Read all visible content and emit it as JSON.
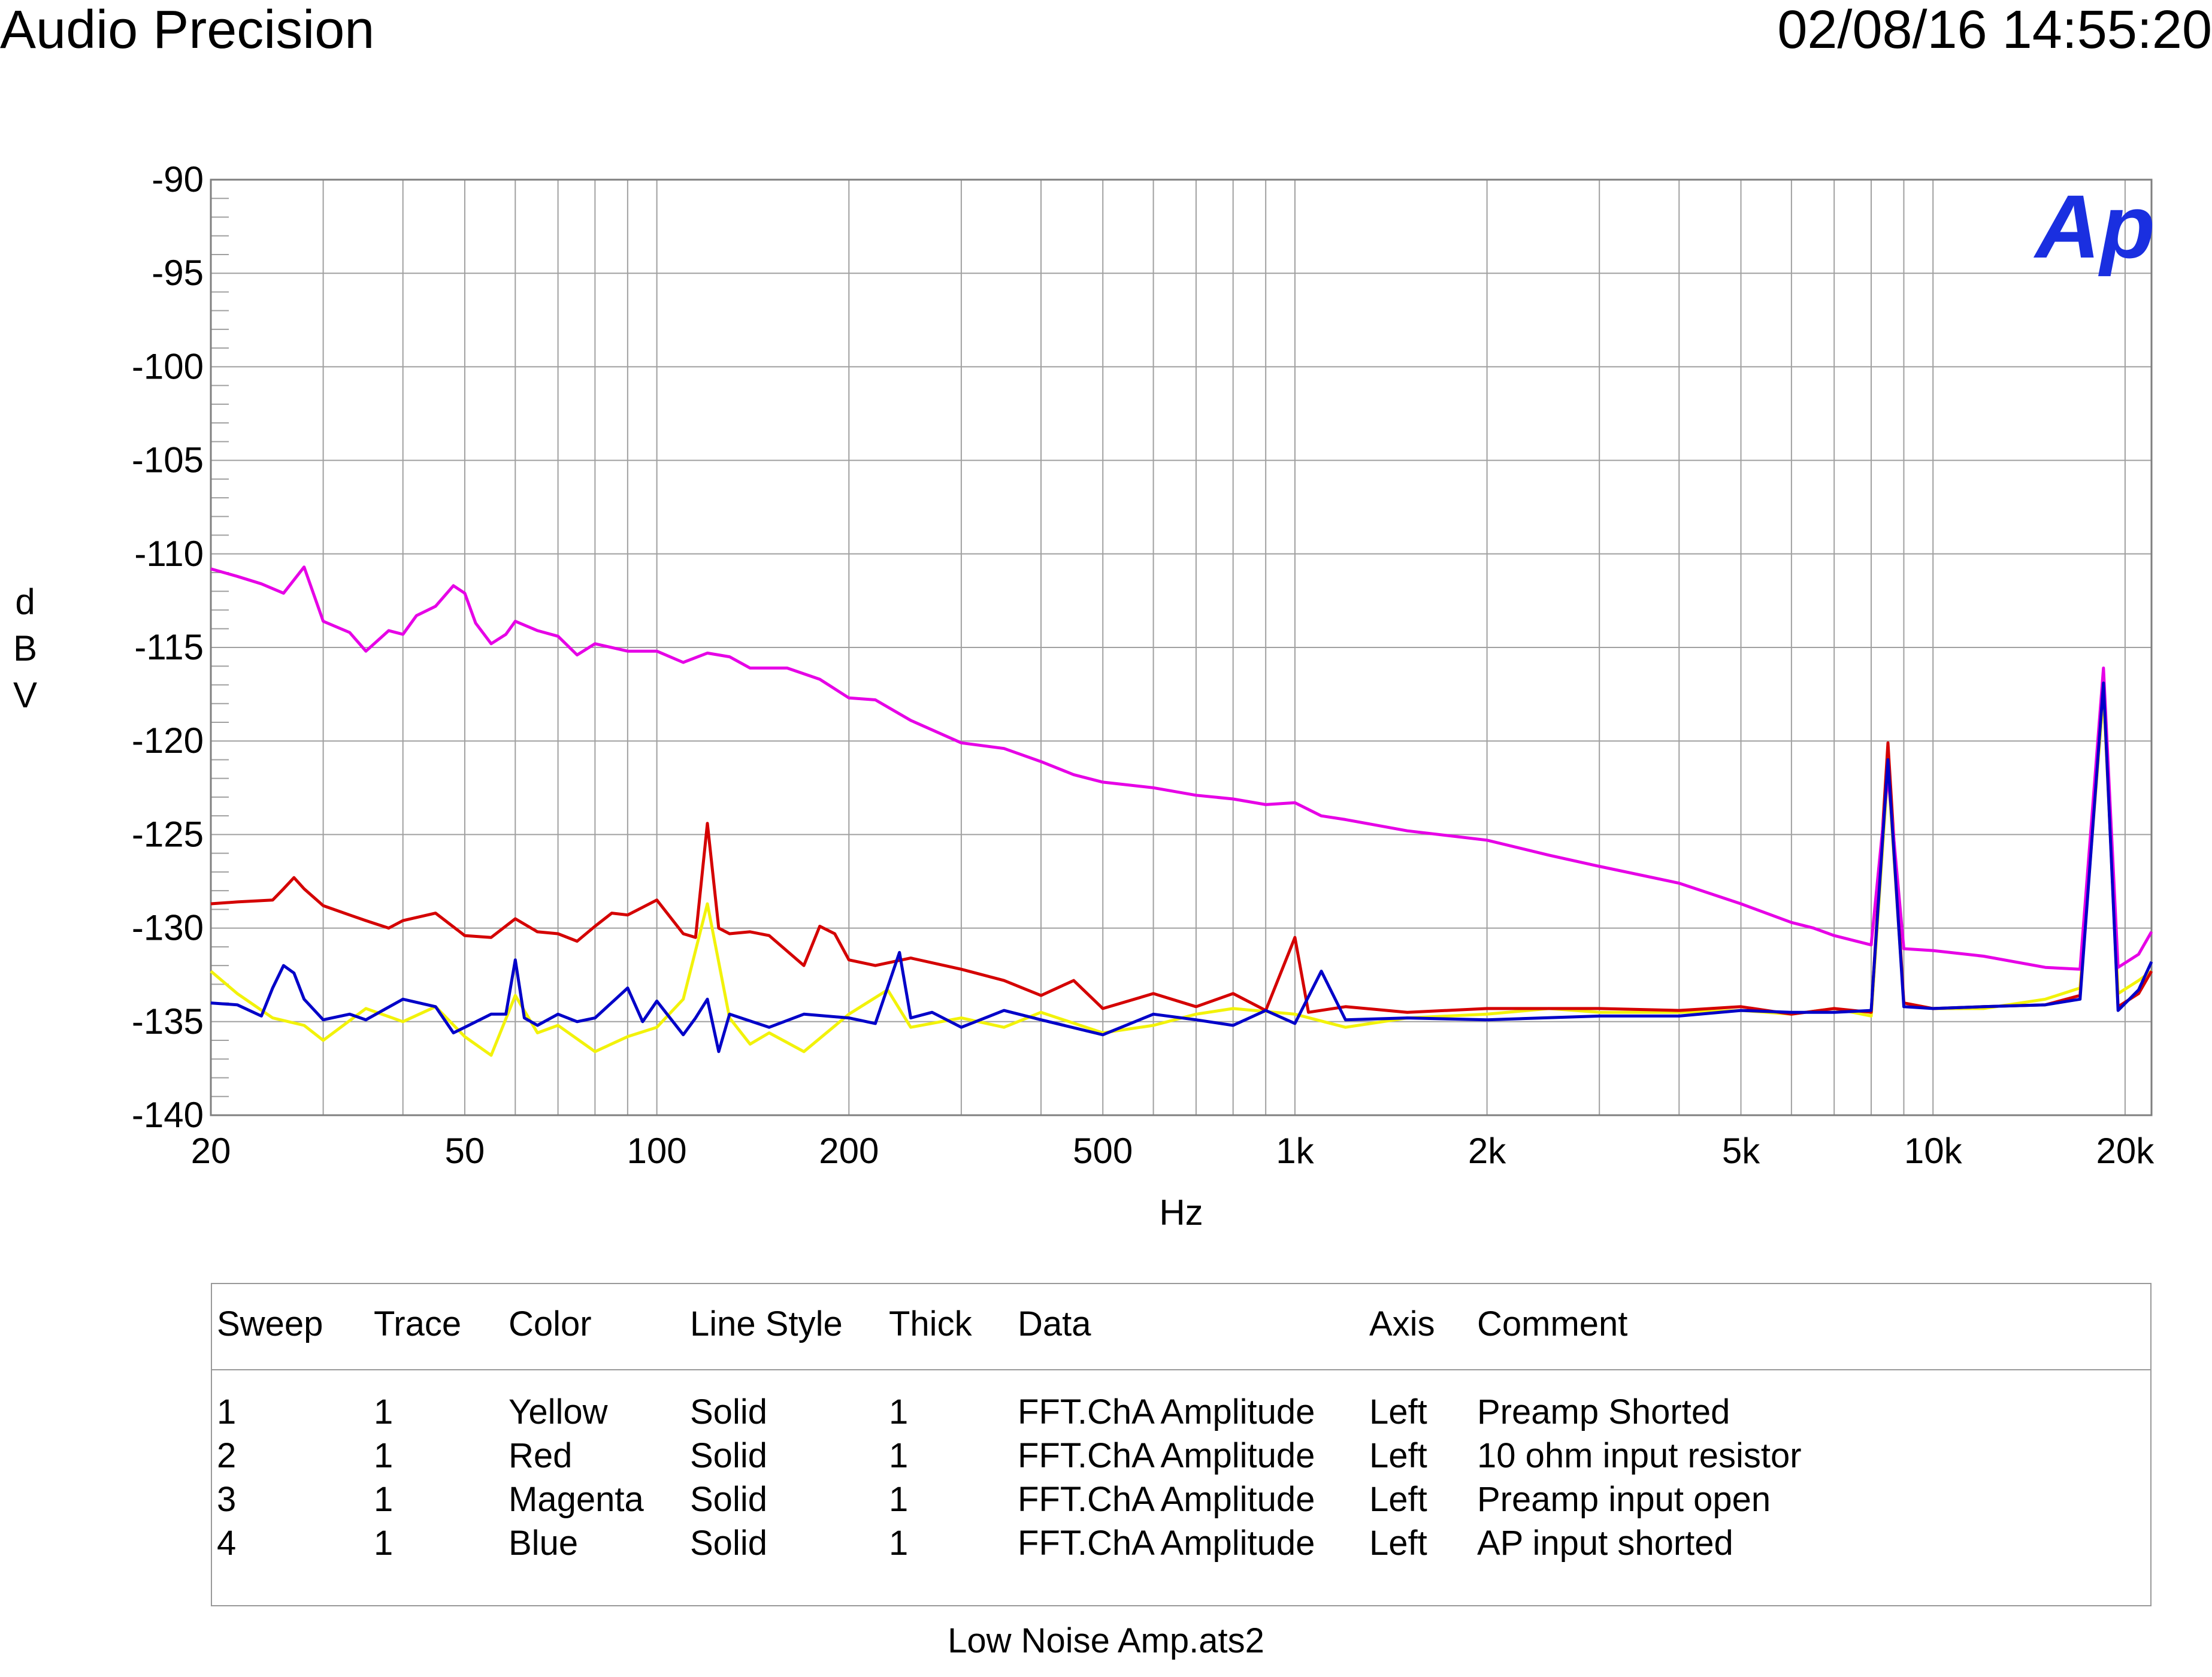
{
  "header": {
    "left": "Audio Precision",
    "right": "02/08/16 14:55:20"
  },
  "logo_text": "Ap",
  "colors": {
    "yellow": "#f2f20a",
    "red": "#d40000",
    "magenta": "#e600e6",
    "blue": "#0000c8",
    "logo": "#1a2fe0",
    "grid": "#a0a0a0"
  },
  "chart_data": {
    "type": "line",
    "title": "",
    "xlabel": "Hz",
    "ylabel": "dBV",
    "ylabel_chars": [
      "d",
      "B",
      "V"
    ],
    "xscale": "log",
    "xlim": [
      20,
      22000
    ],
    "ylim": [
      -140,
      -90
    ],
    "grid": true,
    "yticks": [
      -90,
      -95,
      -100,
      -105,
      -110,
      -115,
      -120,
      -125,
      -130,
      -135,
      -140
    ],
    "ytick_labels": [
      "-90",
      "-95",
      "-100",
      "-105",
      "-110",
      "-115",
      "-120",
      "-125",
      "-130",
      "-135",
      "-140"
    ],
    "xticks": [
      20,
      50,
      100,
      200,
      500,
      1000,
      2000,
      5000,
      10000,
      20000
    ],
    "xtick_labels": [
      "20",
      "50",
      "100",
      "200",
      "500",
      "1k",
      "2k",
      "5k",
      "10k",
      "20k"
    ],
    "series": [
      {
        "name": "Yellow",
        "color": "#f2f20a",
        "comment": "Preamp Shorted",
        "x": [
          20,
          22,
          25,
          28,
          30,
          35,
          40,
          45,
          50,
          55,
          60,
          65,
          70,
          80,
          90,
          100,
          110,
          120,
          130,
          140,
          150,
          170,
          200,
          230,
          250,
          300,
          350,
          400,
          500,
          600,
          700,
          800,
          1000,
          1200,
          1500,
          2000,
          2500,
          3000,
          4000,
          5000,
          6000,
          7000,
          8000,
          8500,
          9000,
          10000,
          12000,
          15000,
          17000,
          18500,
          19500,
          21000,
          22000
        ],
        "y": [
          -132.3,
          -133.5,
          -134.8,
          -135.2,
          -136,
          -134.3,
          -135,
          -134.2,
          -135.8,
          -136.8,
          -133.6,
          -135.6,
          -135.2,
          -136.6,
          -135.8,
          -135.3,
          -133.8,
          -128.7,
          -134.8,
          -136.2,
          -135.6,
          -136.6,
          -134.6,
          -133.3,
          -135.3,
          -134.8,
          -135.3,
          -134.5,
          -135.6,
          -135.2,
          -134.6,
          -134.3,
          -134.6,
          -135.3,
          -134.8,
          -134.6,
          -134.3,
          -134.5,
          -134.5,
          -134.4,
          -134.6,
          -134.3,
          -134.7,
          -121.5,
          -134,
          -134.3,
          -134.3,
          -133.8,
          -133.2,
          -117.5,
          -133.5,
          -132.8,
          -132.3
        ]
      },
      {
        "name": "Red",
        "color": "#d40000",
        "comment": "10 ohm input resistor",
        "x": [
          20,
          22,
          25,
          26,
          27,
          28,
          30,
          33,
          35,
          38,
          40,
          45,
          50,
          55,
          60,
          65,
          70,
          75,
          80,
          85,
          90,
          100,
          110,
          115,
          120,
          125,
          130,
          140,
          150,
          170,
          180,
          190,
          200,
          220,
          250,
          300,
          350,
          400,
          450,
          500,
          600,
          700,
          800,
          900,
          1000,
          1050,
          1200,
          1500,
          2000,
          3000,
          4000,
          5000,
          6000,
          7000,
          8000,
          8500,
          9000,
          10000,
          12000,
          15000,
          17000,
          18500,
          19500,
          21000,
          22000
        ],
        "y": [
          -128.7,
          -128.6,
          -128.5,
          -127.9,
          -127.3,
          -127.9,
          -128.8,
          -129.3,
          -129.6,
          -130,
          -129.6,
          -129.2,
          -130.4,
          -130.5,
          -129.5,
          -130.2,
          -130.3,
          -130.7,
          -129.9,
          -129.2,
          -129.3,
          -128.5,
          -130.3,
          -130.5,
          -124.4,
          -130,
          -130.3,
          -130.2,
          -130.4,
          -132,
          -129.9,
          -130.3,
          -131.7,
          -132,
          -131.6,
          -132.2,
          -132.8,
          -133.6,
          -132.8,
          -134.3,
          -133.5,
          -134.2,
          -133.5,
          -134.4,
          -130.5,
          -134.5,
          -134.2,
          -134.5,
          -134.3,
          -134.3,
          -134.4,
          -134.2,
          -134.6,
          -134.3,
          -134.5,
          -120.1,
          -134,
          -134.3,
          -134.2,
          -134.1,
          -133.6,
          -116.8,
          -134.2,
          -133.5,
          -132.3
        ]
      },
      {
        "name": "Magenta",
        "color": "#e600e6",
        "comment": "Preamp input open",
        "x": [
          20,
          22,
          24,
          26,
          28,
          30,
          33,
          35,
          38,
          40,
          42,
          45,
          48,
          50,
          52,
          55,
          58,
          60,
          65,
          70,
          75,
          80,
          90,
          100,
          110,
          120,
          130,
          140,
          160,
          180,
          200,
          220,
          250,
          300,
          350,
          400,
          450,
          500,
          600,
          700,
          800,
          900,
          1000,
          1100,
          1200,
          1500,
          2000,
          2500,
          3000,
          4000,
          5000,
          6000,
          6500,
          7000,
          8000,
          8500,
          9000,
          10000,
          12000,
          15000,
          17000,
          18500,
          19500,
          21000,
          22000
        ],
        "y": [
          -110.8,
          -111.2,
          -111.6,
          -112.1,
          -110.7,
          -113.6,
          -114.2,
          -115.2,
          -114.1,
          -114.3,
          -113.3,
          -112.8,
          -111.7,
          -112.1,
          -113.7,
          -114.8,
          -114.3,
          -113.6,
          -114.1,
          -114.4,
          -115.4,
          -114.8,
          -115.2,
          -115.2,
          -115.8,
          -115.3,
          -115.5,
          -116.1,
          -116.1,
          -116.7,
          -117.7,
          -117.8,
          -118.9,
          -120.1,
          -120.4,
          -121.1,
          -121.8,
          -122.2,
          -122.5,
          -122.9,
          -123.1,
          -123.4,
          -123.3,
          -124,
          -124.2,
          -124.8,
          -125.3,
          -126.1,
          -126.7,
          -127.6,
          -128.7,
          -129.7,
          -130,
          -130.4,
          -130.9,
          -121.8,
          -131.1,
          -131.2,
          -131.5,
          -132.1,
          -132.2,
          -116.1,
          -132.1,
          -131.4,
          -130.2
        ]
      },
      {
        "name": "Blue",
        "color": "#0000c8",
        "comment": "AP input shorted",
        "x": [
          20,
          22,
          24,
          25,
          26,
          27,
          28,
          30,
          33,
          35,
          40,
          45,
          48,
          50,
          55,
          58,
          60,
          62,
          65,
          70,
          75,
          80,
          90,
          95,
          100,
          110,
          115,
          120,
          125,
          130,
          150,
          170,
          200,
          220,
          240,
          250,
          270,
          300,
          350,
          400,
          500,
          600,
          700,
          800,
          900,
          1000,
          1100,
          1200,
          1500,
          2000,
          3000,
          4000,
          5000,
          6000,
          7000,
          8000,
          8500,
          9000,
          10000,
          12000,
          15000,
          17000,
          18500,
          19500,
          21000,
          22000
        ],
        "y": [
          -134,
          -134.1,
          -134.7,
          -133.2,
          -132,
          -132.4,
          -133.8,
          -134.9,
          -134.6,
          -134.9,
          -133.8,
          -134.2,
          -135.6,
          -135.3,
          -134.6,
          -134.6,
          -131.7,
          -134.8,
          -135.2,
          -134.6,
          -135,
          -134.8,
          -133.2,
          -135,
          -133.9,
          -135.7,
          -134.8,
          -133.8,
          -136.6,
          -134.6,
          -135.3,
          -134.6,
          -134.8,
          -135.1,
          -131.3,
          -134.8,
          -134.5,
          -135.3,
          -134.4,
          -134.9,
          -135.7,
          -134.6,
          -134.9,
          -135.2,
          -134.4,
          -135.1,
          -132.3,
          -134.9,
          -134.8,
          -134.9,
          -134.7,
          -134.7,
          -134.4,
          -134.5,
          -134.5,
          -134.4,
          -121,
          -134.2,
          -134.3,
          -134.2,
          -134.1,
          -133.8,
          -116.9,
          -134.4,
          -133.3,
          -131.8
        ]
      }
    ]
  },
  "legend": {
    "headers": {
      "sweep": "Sweep",
      "trace": "Trace",
      "color": "Color",
      "line_style": "Line Style",
      "thick": "Thick",
      "data": "Data",
      "axis": "Axis",
      "comment": "Comment"
    },
    "rows": [
      {
        "sweep": "1",
        "trace": "1",
        "color": "Yellow",
        "line_style": "Solid",
        "thick": "1",
        "data": "FFT.ChA Amplitude",
        "axis": "Left",
        "comment": "Preamp Shorted"
      },
      {
        "sweep": "2",
        "trace": "1",
        "color": "Red",
        "line_style": "Solid",
        "thick": "1",
        "data": "FFT.ChA Amplitude",
        "axis": "Left",
        "comment": "10 ohm input resistor"
      },
      {
        "sweep": "3",
        "trace": "1",
        "color": "Magenta",
        "line_style": "Solid",
        "thick": "1",
        "data": "FFT.ChA Amplitude",
        "axis": "Left",
        "comment": "Preamp input open"
      },
      {
        "sweep": "4",
        "trace": "1",
        "color": "Blue",
        "line_style": "Solid",
        "thick": "1",
        "data": "FFT.ChA Amplitude",
        "axis": "Left",
        "comment": "AP input shorted"
      }
    ]
  },
  "footer": "Low Noise Amp.ats2"
}
